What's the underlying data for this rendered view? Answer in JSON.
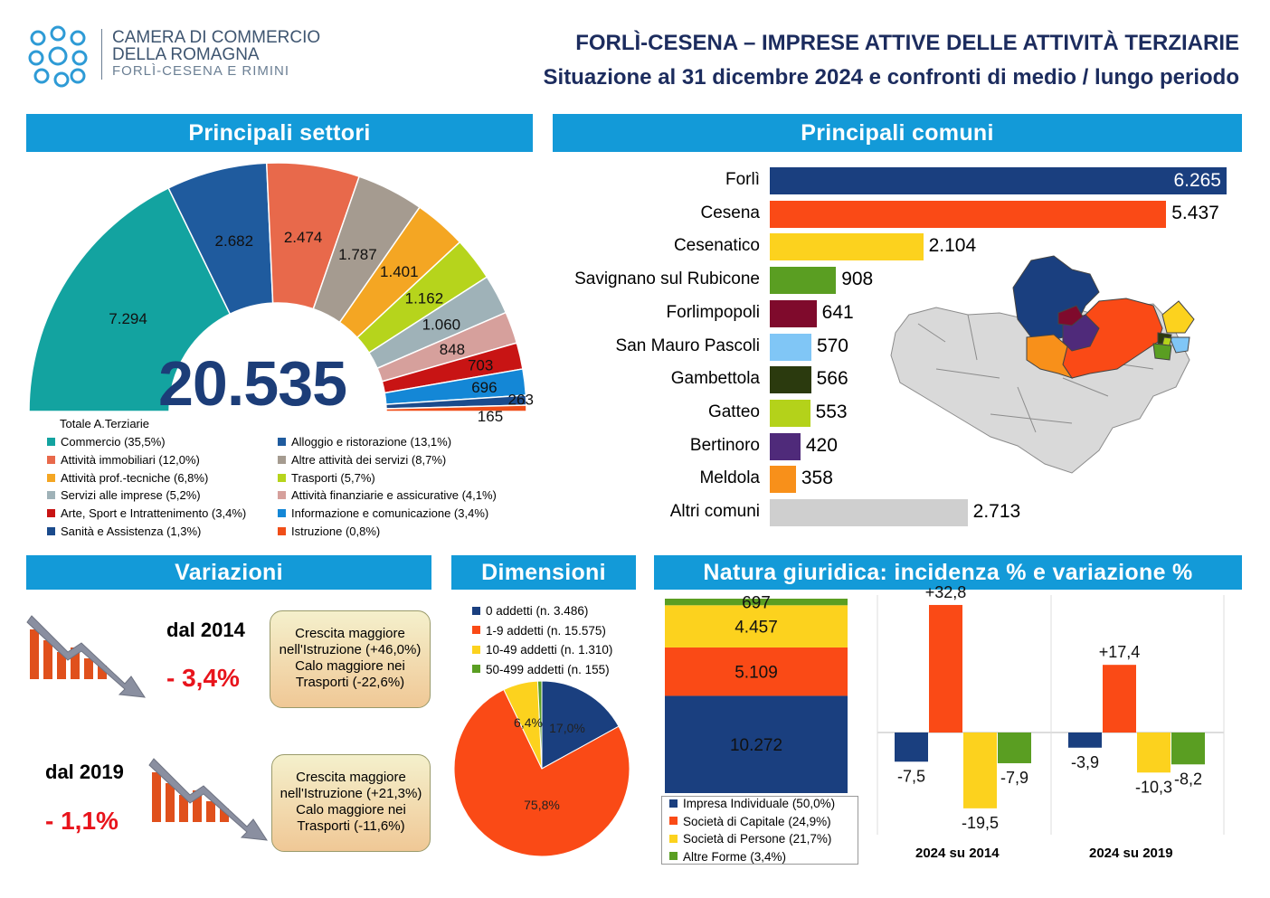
{
  "header": {
    "org_line1": "CAMERA DI COMMERCIO",
    "org_line2": "DELLA ROMAGNA",
    "org_line3": "FORLÌ-CESENA E RIMINI",
    "title": "FORLÌ-CESENA – IMPRESE ATTIVE DELLE ATTIVITÀ TERZIARIE",
    "subtitle": "Situazione al 31 dicembre 2024 e confronti di medio / lungo periodo"
  },
  "banners": {
    "settori": "Principali settori",
    "comuni": "Principali comuni",
    "variazioni": "Variazioni",
    "dimensioni": "Dimensioni",
    "natura": "Natura giuridica: incidenza % e variazione %"
  },
  "colors": {
    "banner": "#139ad8",
    "title": "#1c2c5e",
    "negative": "#e8141c"
  },
  "chart_data": [
    {
      "type": "pie",
      "subtype": "semicircle",
      "id": "settori",
      "total": "20.535",
      "total_label": "Totale A.Terziarie",
      "slices": [
        {
          "name": "Commercio (35,5%)",
          "value": 7294,
          "label": "7.294",
          "color": "#13a3a0"
        },
        {
          "name": "Alloggio e ristorazione  (13,1%)",
          "value": 2682,
          "label": "2.682",
          "color": "#1f5b9e"
        },
        {
          "name": "Attività immobiliari (12,0%)",
          "value": 2474,
          "label": "2.474",
          "color": "#e8694b"
        },
        {
          "name": "Altre attività dei servizi (8,7%)",
          "value": 1787,
          "label": "1.787",
          "color": "#a59b90"
        },
        {
          "name": "Attività prof.-tecniche (6,8%)",
          "value": 1401,
          "label": "1.401",
          "color": "#f4a623"
        },
        {
          "name": "Trasporti (5,7%)",
          "value": 1162,
          "label": "1.162",
          "color": "#b6d41c"
        },
        {
          "name": "Servizi alle imprese (5,2%)",
          "value": 1060,
          "label": "1.060",
          "color": "#9fb2b8"
        },
        {
          "name": "Attività finanziarie e assicurative (4,1%)",
          "value": 848,
          "label": "848",
          "color": "#d6a09c"
        },
        {
          "name": "Arte, Sport e Intrattenimento (3,4%)",
          "value": 703,
          "label": "703",
          "color": "#c81414"
        },
        {
          "name": "Informazione e comunicazione (3,4%)",
          "value": 696,
          "label": "696",
          "color": "#1487d6"
        },
        {
          "name": "Sanità e Assistenza (1,3%)",
          "value": 263,
          "label": "263",
          "color": "#1b4b8c"
        },
        {
          "name": "Istruzione (0,8%)",
          "value": 165,
          "label": "165",
          "color": "#f04e18"
        }
      ]
    },
    {
      "type": "bar",
      "orientation": "horizontal",
      "id": "comuni",
      "categories": [
        "Forlì",
        "Cesena",
        "Cesenatico",
        "Savignano sul Rubicone",
        "Forlimpopoli",
        "San Mauro Pascoli",
        "Gambettola",
        "Gatteo",
        "Bertinoro",
        "Meldola",
        "Altri comuni"
      ],
      "values": [
        6265,
        5437,
        2104,
        908,
        641,
        570,
        566,
        553,
        420,
        358,
        2713
      ],
      "labels": [
        "6.265",
        "5.437",
        "2.104",
        "908",
        "641",
        "570",
        "566",
        "553",
        "420",
        "358",
        "2.713"
      ],
      "colors": [
        "#1a3f7f",
        "#fa4a16",
        "#fcd21e",
        "#5a9e22",
        "#7f0a2c",
        "#80c6f6",
        "#2b3a0e",
        "#b4d21a",
        "#4f2a7a",
        "#f8901a",
        "#cfcfcf"
      ]
    },
    {
      "type": "pie",
      "id": "dimensioni",
      "slices": [
        {
          "name": "0 addetti (n. 3.486)",
          "value": 3486,
          "label": "17,0%",
          "color": "#1a3f7f"
        },
        {
          "name": "1-9 addetti (n. 15.575)",
          "value": 15575,
          "label": "75,8%",
          "color": "#fa4a16"
        },
        {
          "name": "10-49 addetti (n. 1.310)",
          "value": 1310,
          "label": "6,4%",
          "color": "#fcd21e"
        },
        {
          "name": "50-499 addetti (n. 155)",
          "value": 155,
          "label": "",
          "color": "#5a9e22"
        }
      ]
    },
    {
      "type": "bar",
      "subtype": "stacked",
      "id": "natura-stack",
      "segments": [
        {
          "name": "Impresa Individuale (50,0%)",
          "value": 10272,
          "label": "10.272",
          "color": "#1a3f7f"
        },
        {
          "name": "Società di Capitale (24,9%)",
          "value": 5109,
          "label": "5.109",
          "color": "#fa4a16"
        },
        {
          "name": "Società di Persone (21,7%)",
          "value": 4457,
          "label": "4.457",
          "color": "#fcd21e"
        },
        {
          "name": "Altre Forme (3,4%)",
          "value": 697,
          "label": "697",
          "color": "#5a9e22"
        }
      ]
    },
    {
      "type": "bar",
      "id": "natura-variazioni",
      "groups": [
        {
          "name": "2024 su 2014",
          "values": [
            -7.5,
            32.8,
            -19.5,
            -7.9
          ],
          "labels": [
            "-7,5",
            "+32,8",
            "-19,5",
            "-7,9"
          ]
        },
        {
          "name": "2024 su 2019",
          "values": [
            -3.9,
            17.4,
            -10.3,
            -8.2
          ],
          "labels": [
            "-3,9",
            "+17,4",
            "-10,3",
            "-8,2"
          ]
        }
      ],
      "colors": [
        "#1a3f7f",
        "#fa4a16",
        "#fcd21e",
        "#5a9e22"
      ]
    }
  ],
  "variazioni": {
    "p1": {
      "period": "dal 2014",
      "value": "- 3,4%",
      "note_l1": "Crescita maggiore",
      "note_l2": "nell'Istruzione (+46,0%)",
      "note_l3": "Calo maggiore nei",
      "note_l4": "Trasporti (-22,6%)"
    },
    "p2": {
      "period": "dal 2019",
      "value": "- 1,1%",
      "note_l1": "Crescita maggiore",
      "note_l2": "nell'Istruzione (+21,3%)",
      "note_l3": "Calo maggiore nei",
      "note_l4": "Trasporti (-11,6%)"
    }
  },
  "icons": [
    "logo-icon",
    "map-icon",
    "down-trend-icon"
  ]
}
